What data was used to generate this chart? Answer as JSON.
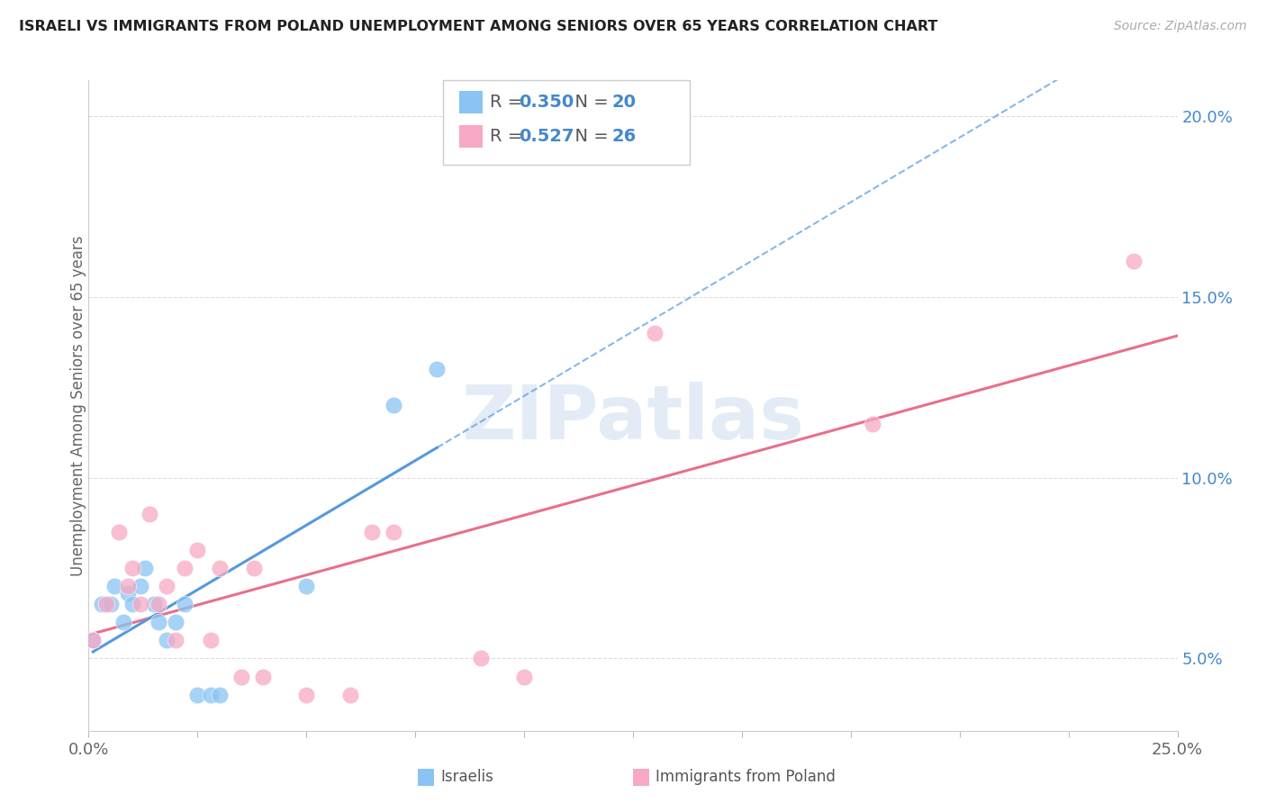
{
  "title": "ISRAELI VS IMMIGRANTS FROM POLAND UNEMPLOYMENT AMONG SENIORS OVER 65 YEARS CORRELATION CHART",
  "source": "Source: ZipAtlas.com",
  "ylabel": "Unemployment Among Seniors over 65 years",
  "xlim": [
    0.0,
    0.25
  ],
  "ylim": [
    0.03,
    0.21
  ],
  "x_tick_positions": [
    0.0,
    0.025,
    0.05,
    0.075,
    0.1,
    0.125,
    0.15,
    0.175,
    0.2,
    0.225,
    0.25
  ],
  "x_tick_labels_show": {
    "0.0": "0.0%",
    "0.25": "25.0%"
  },
  "y_ticks_right": [
    0.05,
    0.1,
    0.15,
    0.2
  ],
  "y_tick_labels_right": [
    "5.0%",
    "10.0%",
    "15.0%",
    "20.0%"
  ],
  "israeli_color": "#89c4f4",
  "polish_color": "#f7a8c4",
  "israeli_line_color": "#5599dd",
  "polish_line_color": "#e8708a",
  "israeli_R": 0.35,
  "israeli_N": 20,
  "polish_R": 0.527,
  "polish_N": 26,
  "right_axis_color": "#4488cc",
  "legend_label_israeli": "Israelis",
  "legend_label_polish": "Immigrants from Poland",
  "israeli_x": [
    0.001,
    0.003,
    0.005,
    0.006,
    0.008,
    0.009,
    0.01,
    0.012,
    0.013,
    0.015,
    0.016,
    0.018,
    0.02,
    0.022,
    0.025,
    0.028,
    0.03,
    0.05,
    0.07,
    0.08
  ],
  "israeli_y": [
    0.055,
    0.065,
    0.065,
    0.07,
    0.06,
    0.068,
    0.065,
    0.07,
    0.075,
    0.065,
    0.06,
    0.055,
    0.06,
    0.065,
    0.04,
    0.04,
    0.04,
    0.07,
    0.12,
    0.13
  ],
  "polish_x": [
    0.001,
    0.004,
    0.007,
    0.009,
    0.01,
    0.012,
    0.014,
    0.016,
    0.018,
    0.02,
    0.022,
    0.025,
    0.028,
    0.03,
    0.035,
    0.038,
    0.04,
    0.05,
    0.06,
    0.065,
    0.07,
    0.09,
    0.1,
    0.13,
    0.18,
    0.24
  ],
  "polish_y": [
    0.055,
    0.065,
    0.085,
    0.07,
    0.075,
    0.065,
    0.09,
    0.065,
    0.07,
    0.055,
    0.075,
    0.08,
    0.055,
    0.075,
    0.045,
    0.075,
    0.045,
    0.04,
    0.04,
    0.085,
    0.085,
    0.05,
    0.045,
    0.14,
    0.115,
    0.16
  ],
  "watermark_text": "ZIPatlas",
  "background_color": "#ffffff",
  "grid_color": "#dddddd",
  "grid_style": "--"
}
